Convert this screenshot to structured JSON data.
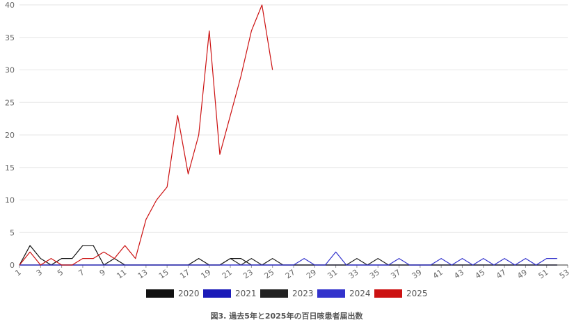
{
  "chart_data": {
    "type": "line",
    "caption": "図3. 過去5年と2025年の百日咳患者届出数",
    "ylim": [
      0,
      40
    ],
    "yticks": [
      0,
      5,
      10,
      15,
      20,
      25,
      30,
      35,
      40
    ],
    "xlim": [
      1,
      53
    ],
    "xticks": [
      1,
      3,
      5,
      7,
      9,
      11,
      13,
      15,
      17,
      19,
      21,
      23,
      25,
      27,
      29,
      31,
      33,
      35,
      37,
      39,
      41,
      43,
      45,
      47,
      49,
      51,
      53
    ],
    "grid": "horizontal",
    "legend_position": "bottom",
    "series": [
      {
        "name": "2020",
        "color": "#111111",
        "values": [
          0,
          3,
          1,
          0,
          1,
          1,
          3,
          3,
          0,
          1,
          0,
          0,
          0,
          0,
          0,
          0,
          0,
          1,
          0,
          0,
          1,
          1,
          0,
          0,
          0,
          0,
          0,
          0,
          0,
          0,
          0,
          0,
          0,
          0,
          0,
          0,
          0,
          0,
          0,
          0,
          0,
          0,
          0,
          0,
          0,
          0,
          0,
          0,
          0,
          0,
          0,
          0
        ]
      },
      {
        "name": "2021",
        "color": "#1a1ab8",
        "values": [
          0,
          0,
          0,
          0,
          0,
          0,
          0,
          0,
          0,
          0,
          0,
          0,
          0,
          0,
          0,
          0,
          0,
          0,
          0,
          0,
          0,
          0,
          0,
          0,
          0,
          0,
          0,
          0,
          0,
          0,
          0,
          0,
          0,
          0,
          0,
          0,
          0,
          0,
          0,
          0,
          0,
          0,
          0,
          0,
          0,
          0,
          0,
          0,
          0,
          0,
          0,
          0
        ]
      },
      {
        "name": "2023",
        "color": "#222222",
        "values": [
          0,
          0,
          0,
          0,
          0,
          0,
          0,
          0,
          0,
          0,
          0,
          0,
          0,
          0,
          0,
          0,
          0,
          0,
          0,
          0,
          1,
          0,
          1,
          0,
          1,
          0,
          0,
          0,
          0,
          0,
          0,
          0,
          1,
          0,
          1,
          0,
          0,
          0,
          0,
          0,
          0,
          0,
          0,
          0,
          0,
          0,
          0,
          0,
          0,
          0,
          0,
          0
        ]
      },
      {
        "name": "2024",
        "color": "#3333cc",
        "values": [
          0,
          0,
          0,
          0,
          0,
          0,
          0,
          0,
          0,
          0,
          0,
          0,
          0,
          0,
          0,
          0,
          0,
          0,
          0,
          0,
          0,
          0,
          0,
          0,
          0,
          0,
          0,
          1,
          0,
          0,
          2,
          0,
          0,
          0,
          0,
          0,
          1,
          0,
          0,
          0,
          1,
          0,
          1,
          0,
          1,
          0,
          1,
          0,
          1,
          0,
          1,
          1
        ]
      },
      {
        "name": "2025",
        "color": "#cc1111",
        "values": [
          0,
          2,
          0,
          1,
          0,
          0,
          1,
          1,
          2,
          1,
          3,
          1,
          7,
          10,
          12,
          23,
          14,
          20,
          36,
          17,
          23,
          29,
          36,
          40,
          30
        ]
      }
    ]
  }
}
